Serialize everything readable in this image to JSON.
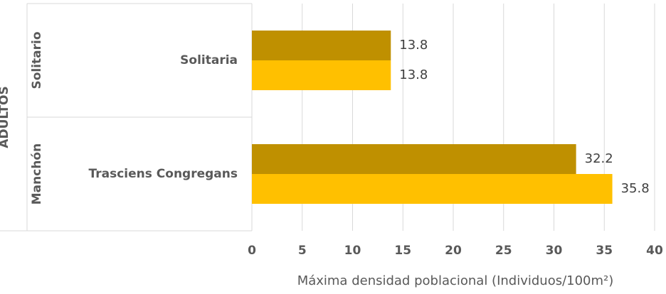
{
  "chart_data": {
    "type": "bar",
    "orientation": "horizontal",
    "categories": [
      "Solitaria",
      "Trasciens Congregans"
    ],
    "category_groups": [
      "Solitario",
      "Manchón"
    ],
    "outer_label": "ADULTOS",
    "series": [
      {
        "color": "#bf9000",
        "values": [
          13.8,
          32.2
        ]
      },
      {
        "color": "#ffc000",
        "values": [
          13.8,
          35.8
        ]
      }
    ],
    "xlim": [
      0,
      40
    ],
    "xticks": [
      0,
      5,
      10,
      15,
      20,
      25,
      30,
      35,
      40
    ],
    "xlabel": "Máxima densidad poblacional (Individuos/100m²)",
    "grid": true
  }
}
